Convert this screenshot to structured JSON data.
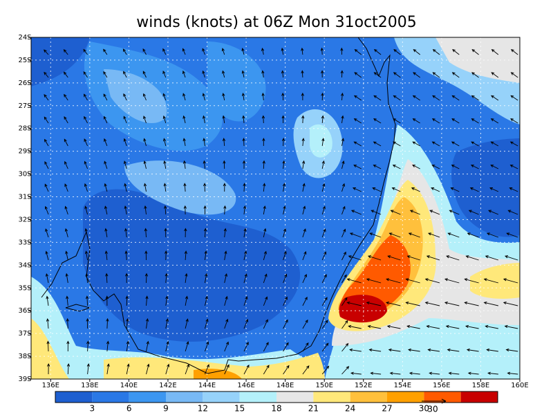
{
  "title": "winds (knots) at 06Z Mon 31oct2005",
  "map": {
    "lat_labels": [
      "24S",
      "25S",
      "26S",
      "27S",
      "28S",
      "29S",
      "30S",
      "31S",
      "32S",
      "33S",
      "34S",
      "35S",
      "36S",
      "37S",
      "38S",
      "39S"
    ],
    "lon_labels": [
      "136E",
      "138E",
      "140E",
      "142E",
      "144E",
      "146E",
      "148E",
      "150E",
      "152E",
      "154E",
      "156E",
      "158E",
      "160E"
    ]
  },
  "colorbar": {
    "colors": [
      "#1e5fd0",
      "#2a78e6",
      "#3c96f0",
      "#78b9f5",
      "#96d2fa",
      "#b4f0fa",
      "#e6e6e6",
      "#ffe87a",
      "#ffc03c",
      "#ffa000",
      "#ff5a00",
      "#c80000"
    ],
    "labels": [
      "3",
      "6",
      "9",
      "12",
      "15",
      "18",
      "21",
      "24",
      "27",
      "30"
    ]
  },
  "reference_vector": {
    "label": "30"
  }
}
